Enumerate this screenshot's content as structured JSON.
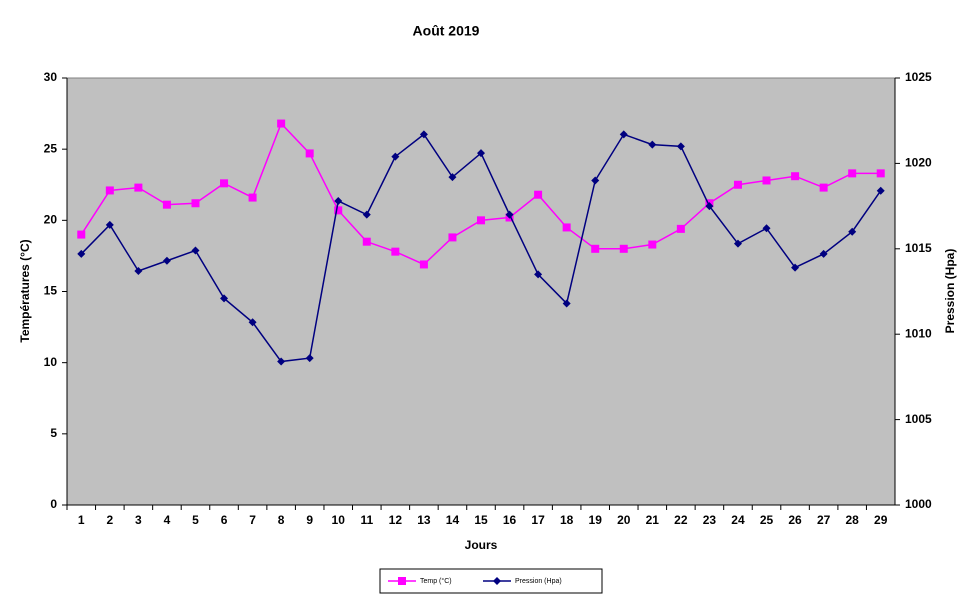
{
  "chart_data": {
    "type": "line",
    "title": "Août 2019",
    "xlabel": "Jours",
    "ylabel": "Températures (°C)",
    "y2label": "Pression (Hpa)",
    "categories": [
      1,
      2,
      3,
      4,
      5,
      6,
      7,
      8,
      9,
      10,
      11,
      12,
      13,
      14,
      15,
      16,
      17,
      18,
      19,
      20,
      21,
      22,
      23,
      24,
      25,
      26,
      27,
      28,
      29
    ],
    "series": [
      {
        "name": "Temp (°C)",
        "color": "#ff00ff",
        "marker": "square",
        "values": [
          19.0,
          22.1,
          22.3,
          21.1,
          21.2,
          22.6,
          21.6,
          26.8,
          24.7,
          20.7,
          18.5,
          17.8,
          16.9,
          18.8,
          20.0,
          20.2,
          21.8,
          19.5,
          18.0,
          18.0,
          18.3,
          19.4,
          21.2,
          22.5,
          22.8,
          23.1,
          22.3,
          23.3,
          23.3
        ]
      },
      {
        "name": "Pression (Hpa)",
        "color": "#000080",
        "marker": "diamond",
        "axis": "y2",
        "values": [
          1014.7,
          1016.4,
          1013.7,
          1014.3,
          1014.9,
          1012.1,
          1010.7,
          1008.4,
          1008.6,
          1017.8,
          1017.0,
          1020.4,
          1021.7,
          1019.2,
          1020.6,
          1017.0,
          1013.5,
          1011.8,
          1019.0,
          1021.7,
          1021.1,
          1021.0,
          1017.5,
          1015.3,
          1016.2,
          1013.9,
          1014.7,
          1016.0,
          1018.4
        ]
      }
    ],
    "ylim": [
      0,
      30
    ],
    "yticks": [
      0,
      5,
      10,
      15,
      20,
      25,
      30
    ],
    "y2lim": [
      1000,
      1025
    ],
    "y2ticks": [
      1000,
      1005,
      1010,
      1015,
      1020,
      1025
    ],
    "plot_background": "#c0c0c0",
    "legend": "bottom"
  }
}
